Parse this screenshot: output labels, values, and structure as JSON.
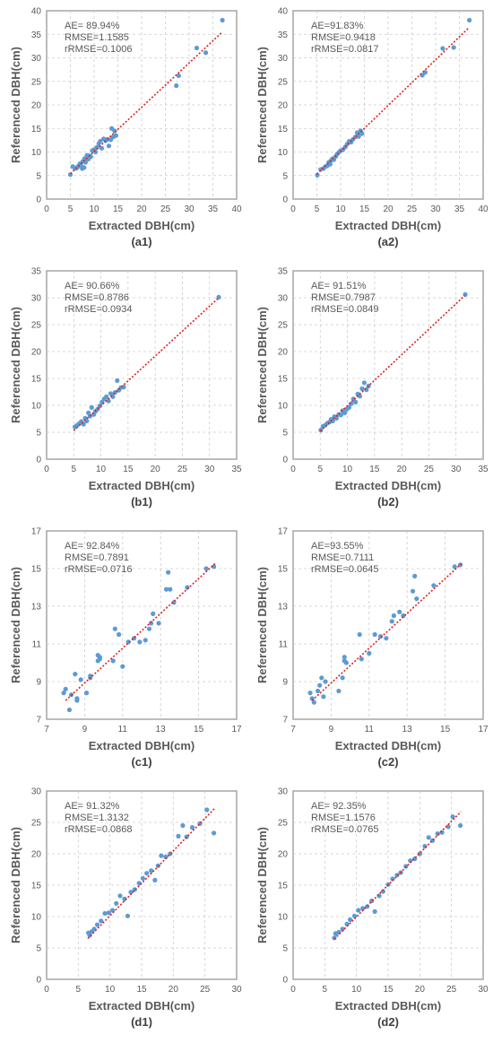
{
  "chart_data": [
    {
      "type": "scatter",
      "id": "a1",
      "panel_label": "(a1)",
      "xlabel": "Extracted DBH(cm)",
      "ylabel": "Referenced DBH(cm)",
      "xlim": [
        0,
        40
      ],
      "ylim": [
        0,
        40
      ],
      "xticks": [
        0,
        5,
        10,
        15,
        20,
        25,
        30,
        35,
        40
      ],
      "yticks": [
        0,
        5,
        10,
        15,
        20,
        25,
        30,
        35,
        40
      ],
      "grid": true,
      "stats": [
        "AE= 89.94%",
        "RMSE=1.1585",
        "rRMSE=0.1006"
      ],
      "trendline": {
        "x": [
          5,
          37
        ],
        "y": [
          5.4,
          35.5
        ]
      },
      "points": {
        "x": [
          5,
          5.5,
          6,
          6.3,
          6.6,
          7,
          7.2,
          7.5,
          7.6,
          7.9,
          8,
          8.2,
          8.5,
          8.8,
          9,
          9.3,
          9.6,
          10,
          10.3,
          10.6,
          11,
          11.3,
          11.6,
          12,
          12.4,
          12.8,
          13.1,
          13.5,
          13.7,
          14,
          14.3,
          14.6,
          27.3,
          27.8,
          31.6,
          33.5,
          37
        ],
        "y": [
          5.2,
          6.9,
          6.5,
          6.6,
          6.9,
          7.5,
          7.2,
          6.5,
          8,
          6.7,
          8.6,
          7.8,
          9.3,
          8.5,
          9.2,
          9,
          10.3,
          10.5,
          10,
          11,
          11.8,
          12.3,
          10.8,
          12.8,
          12.4,
          12.7,
          11.3,
          12.6,
          15,
          13.2,
          14.5,
          13.5,
          24.1,
          26.2,
          32.1,
          31.1,
          38
        ]
      }
    },
    {
      "type": "scatter",
      "id": "a2",
      "panel_label": "(a2)",
      "xlabel": "Extracted DBH(cm)",
      "ylabel": "Referenced DBH(cm)",
      "xlim": [
        0,
        40
      ],
      "ylim": [
        0,
        40
      ],
      "xticks": [
        0,
        5,
        10,
        15,
        20,
        25,
        30,
        35,
        40
      ],
      "yticks": [
        0,
        5,
        10,
        15,
        20,
        25,
        30,
        35,
        40
      ],
      "grid": true,
      "stats": [
        "AE=91.83%",
        "RMSE=0.9418",
        "rRMSE=0.0817"
      ],
      "trendline": {
        "x": [
          5,
          37
        ],
        "y": [
          5.3,
          36.4
        ]
      },
      "points": {
        "x": [
          5.1,
          5.8,
          6.4,
          6.8,
          7.2,
          7.5,
          7.8,
          8,
          8.3,
          8.6,
          9,
          9.3,
          9.7,
          10,
          10.5,
          11,
          11.4,
          11.8,
          12.2,
          12.6,
          13.1,
          13.5,
          13.8,
          14.2,
          14.5,
          27.2,
          27.8,
          31.5,
          33.8,
          37.1
        ],
        "y": [
          5.1,
          6.3,
          6.5,
          6.9,
          7.1,
          7.8,
          7.4,
          8.2,
          8.6,
          8.4,
          9.1,
          9.6,
          10,
          10.3,
          10.5,
          11.1,
          11.7,
          12.3,
          12.1,
          12.7,
          13.2,
          14.1,
          13.3,
          14.5,
          13.9,
          26.3,
          26.9,
          32,
          32.2,
          38
        ]
      }
    },
    {
      "type": "scatter",
      "id": "b1",
      "panel_label": "(b1)",
      "xlabel": "Extracted DBH(cm)",
      "ylabel": "Referenced DBH(cm)",
      "xlim": [
        0,
        35
      ],
      "ylim": [
        0,
        35
      ],
      "xticks": [
        0,
        5,
        10,
        15,
        20,
        25,
        30,
        35
      ],
      "yticks": [
        0,
        5,
        10,
        15,
        20,
        25,
        30,
        35
      ],
      "grid": true,
      "stats": [
        "AE= 90.66%",
        "RMSE=0.8786",
        "rRMSE=0.0934"
      ],
      "trendline": {
        "x": [
          5,
          31.6
        ],
        "y": [
          5.3,
          29.9
        ]
      },
      "points": {
        "x": [
          5.2,
          5.6,
          6,
          6.4,
          6.8,
          7.1,
          7.4,
          7.7,
          8,
          8.3,
          8.7,
          9,
          9.4,
          9.8,
          10.2,
          10.6,
          11,
          11.4,
          11.8,
          12.2,
          12.6,
          13,
          13.3,
          13.7,
          14.2,
          31.7
        ],
        "y": [
          6,
          6.3,
          6.6,
          7,
          6.5,
          7.6,
          7.1,
          8.6,
          8,
          9.6,
          8.3,
          8.9,
          9.3,
          9.9,
          10.6,
          11.2,
          11.6,
          10.8,
          12.2,
          11.6,
          12.4,
          14.6,
          12.8,
          13.3,
          13.4,
          30.1
        ]
      }
    },
    {
      "type": "scatter",
      "id": "b2",
      "panel_label": "(b2)",
      "xlabel": "Extracted DBH(cm)",
      "ylabel": "Referenced DBH(cm)",
      "xlim": [
        0,
        35
      ],
      "ylim": [
        0,
        35
      ],
      "xticks": [
        0,
        5,
        10,
        15,
        20,
        25,
        30,
        35
      ],
      "yticks": [
        0,
        5,
        10,
        15,
        20,
        25,
        30,
        35
      ],
      "grid": true,
      "stats": [
        "AE= 91.51%",
        "RMSE=0.7987",
        "rRMSE=0.0849"
      ],
      "trendline": {
        "x": [
          5,
          31.6
        ],
        "y": [
          5.2,
          30.4
        ]
      },
      "points": {
        "x": [
          5.1,
          5.5,
          5.9,
          6.3,
          6.7,
          7,
          7.3,
          7.6,
          8,
          8.4,
          8.8,
          9.1,
          9.5,
          9.9,
          10.3,
          10.7,
          11.1,
          11.5,
          11.9,
          12.3,
          12.7,
          13.1,
          13.5,
          13.9,
          31.7
        ],
        "y": [
          5.4,
          6.1,
          6.3,
          6.7,
          6.9,
          7.4,
          7.1,
          7.9,
          7.6,
          8.3,
          8.2,
          9,
          8.6,
          9.3,
          9.6,
          10.3,
          11.2,
          10.6,
          12.1,
          11.7,
          13.1,
          14.2,
          12.9,
          13.6,
          30.6
        ]
      }
    },
    {
      "type": "scatter",
      "id": "c1",
      "panel_label": "(c1)",
      "xlabel": "Extracted DBH(cm)",
      "ylabel": "Referenced DBH(cm)",
      "xlim": [
        7,
        17
      ],
      "ylim": [
        7,
        17
      ],
      "xticks": [
        7,
        9,
        11,
        13,
        15,
        17
      ],
      "yticks": [
        7,
        9,
        11,
        13,
        15,
        17
      ],
      "grid": true,
      "stats": [
        "AE= 92.84%",
        "RMSE=0.7891",
        "rRMSE=0.0716"
      ],
      "trendline": {
        "x": [
          8,
          15.9
        ],
        "y": [
          8,
          15.3
        ]
      },
      "points": {
        "x": [
          7.9,
          8,
          8.2,
          8.3,
          8.5,
          8.6,
          8.6,
          8.8,
          9.1,
          9.3,
          9.3,
          9.7,
          9.7,
          9.8,
          9.8,
          10.5,
          10.6,
          10.8,
          11,
          11.3,
          11.6,
          11.9,
          12.2,
          12.4,
          12.5,
          12.6,
          12.9,
          13.3,
          13.4,
          13.5,
          13.7,
          14.4,
          15.4,
          15.8
        ],
        "y": [
          8.4,
          8.6,
          7.5,
          8.3,
          9.4,
          8,
          8.1,
          9.1,
          8.4,
          9.2,
          9.3,
          10.1,
          10.4,
          10.3,
          10.2,
          10.1,
          11.8,
          11.5,
          9.8,
          11.1,
          11.3,
          11.1,
          11.2,
          11.8,
          12.1,
          12.6,
          12.1,
          13.9,
          14.8,
          13.9,
          13.2,
          14,
          15,
          15.1
        ]
      }
    },
    {
      "type": "scatter",
      "id": "c2",
      "panel_label": "(c2)",
      "xlabel": "Extracted DBH(cm)",
      "ylabel": "Referenced DBH(cm)",
      "xlim": [
        7,
        17
      ],
      "ylim": [
        7,
        17
      ],
      "xticks": [
        7,
        9,
        11,
        13,
        15,
        17
      ],
      "yticks": [
        7,
        9,
        11,
        13,
        15,
        17
      ],
      "grid": true,
      "stats": [
        "AE=93.55%",
        "RMSE=0.7111",
        "rRMSE=0.0645"
      ],
      "trendline": {
        "x": [
          8,
          15.9
        ],
        "y": [
          8,
          15.3
        ]
      },
      "points": {
        "x": [
          7.9,
          8,
          8.1,
          8.3,
          8.4,
          8.5,
          8.6,
          8.7,
          9.4,
          9.6,
          9.7,
          9.7,
          9.8,
          10.5,
          10.6,
          11,
          11.3,
          11.6,
          11.9,
          12.2,
          12.3,
          12.6,
          12.8,
          13.3,
          13.4,
          13.5,
          14.4,
          15.5,
          15.8
        ],
        "y": [
          8.4,
          8.1,
          7.9,
          8.5,
          8.8,
          9.2,
          8.2,
          9,
          8.5,
          9.2,
          10.3,
          10.1,
          10,
          11.5,
          10.2,
          10.5,
          11.5,
          11.4,
          11.3,
          12.2,
          12.5,
          12.7,
          12.5,
          13.8,
          14.6,
          13.4,
          14.1,
          15.1,
          15.2
        ]
      }
    },
    {
      "type": "scatter",
      "id": "d1",
      "panel_label": "(d1)",
      "xlabel": "Extracted DBH(cm)",
      "ylabel": "Referenced DBH(cm)",
      "xlim": [
        0,
        30
      ],
      "ylim": [
        0,
        30
      ],
      "xticks": [
        0,
        5,
        10,
        15,
        20,
        25,
        30
      ],
      "yticks": [
        0,
        5,
        10,
        15,
        20,
        25,
        30
      ],
      "grid": true,
      "stats": [
        "AE= 91.32%",
        "RMSE=1.3132",
        "rRMSE=0.0868"
      ],
      "trendline": {
        "x": [
          6.5,
          26.5
        ],
        "y": [
          6.5,
          27.2
        ]
      },
      "points": {
        "x": [
          6.6,
          6.8,
          7.1,
          7.5,
          8,
          8.6,
          9.2,
          9.8,
          10.4,
          11,
          11.6,
          12.3,
          12.8,
          13.3,
          13.9,
          14.6,
          15.2,
          15.8,
          16.5,
          17.1,
          17.6,
          18.1,
          18.8,
          19.5,
          20.8,
          21.5,
          22.1,
          23,
          24.2,
          25.3,
          26.4
        ],
        "y": [
          7.4,
          7,
          7.6,
          8,
          8.7,
          9.3,
          10.5,
          10.6,
          11,
          12.1,
          13.3,
          12.8,
          10.1,
          13.9,
          14.3,
          15.3,
          16.1,
          16.9,
          17.3,
          15.8,
          18.1,
          19.7,
          19.5,
          20,
          22.8,
          24.5,
          22.7,
          24.2,
          24.8,
          27,
          23.3
        ]
      }
    },
    {
      "type": "scatter",
      "id": "d2",
      "panel_label": "(d2)",
      "xlabel": "Extracted DBH(cm)",
      "ylabel": "Referenced DBH(cm)",
      "xlim": [
        0,
        30
      ],
      "ylim": [
        0,
        30
      ],
      "xticks": [
        0,
        5,
        10,
        15,
        20,
        25,
        30
      ],
      "yticks": [
        0,
        5,
        10,
        15,
        20,
        25,
        30
      ],
      "grid": true,
      "stats": [
        "AE= 92.35%",
        "RMSE=1.1576",
        "rRMSE=0.0765"
      ],
      "trendline": {
        "x": [
          6.5,
          26.5
        ],
        "y": [
          6.4,
          26.7
        ]
      },
      "points": {
        "x": [
          6.5,
          6.7,
          7.2,
          7.8,
          8.5,
          9,
          9.7,
          10.3,
          11,
          11.7,
          12.4,
          12.9,
          13.6,
          14.2,
          15,
          15.7,
          16.4,
          17,
          17.8,
          18.5,
          19.2,
          20,
          20.8,
          21.4,
          22,
          22.8,
          23.5,
          24.5,
          25.2,
          26.4
        ],
        "y": [
          6.6,
          7.3,
          7.5,
          8,
          8.8,
          9.5,
          10.1,
          11,
          11.3,
          11.6,
          12.5,
          10.8,
          13.3,
          14,
          15.1,
          16,
          16.6,
          17,
          18,
          18.9,
          19.2,
          20,
          21.2,
          22.6,
          22.1,
          23.2,
          23.4,
          24.3,
          25.9,
          24.5
        ]
      }
    }
  ]
}
